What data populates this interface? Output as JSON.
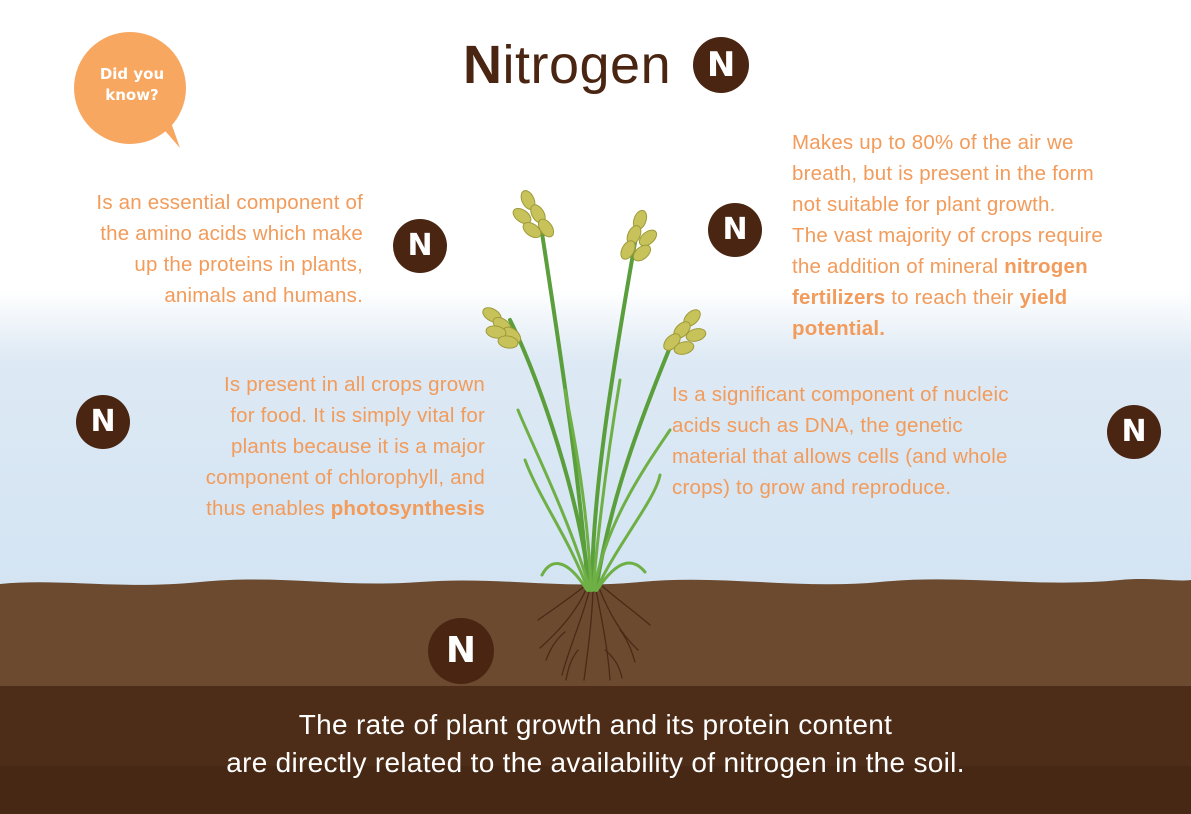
{
  "title": {
    "first_letter": "N",
    "rest": "itrogen"
  },
  "badge_letter": "N",
  "callout": {
    "line1": "Did you",
    "line2": "know?"
  },
  "facts": {
    "amino": {
      "lines": [
        "Is an essential component of",
        "the amino acids which make",
        "up the proteins in plants,",
        "animals and humans."
      ]
    },
    "air": {
      "lines": [
        "Makes up to 80% of the air we",
        "breath, but is present in the form",
        "not suitable for plant growth.",
        "The vast majority of crops require"
      ],
      "line5_prefix": "the addition of mineral ",
      "line5_bold": "nitrogen",
      "line6_bold": "fertilizers",
      "line6_mid": " to reach their ",
      "line6_bold2": "yield",
      "line7_bold": "potential."
    },
    "crops": {
      "lines": [
        "Is present in all crops grown",
        "for food. It is simply vital for",
        "plants because it is a major",
        "component of chlorophyll, and"
      ],
      "line5_prefix": "thus enables ",
      "line5_bold": "photosynthesis"
    },
    "nucleic": {
      "lines": [
        "Is a significant component of nucleic",
        "acids such as DNA, the genetic",
        "material that allows cells (and whole",
        "crops) to grow and reproduce."
      ]
    }
  },
  "footer": {
    "line1": "The rate of plant growth and its protein content",
    "line2": "are directly related to the availability of nitrogen in the soil."
  },
  "colors": {
    "accent_orange": "#f29b5a",
    "bubble_orange": "#f7a760",
    "badge_brown": "#4a2512",
    "soil_light": "#6b4a30",
    "soil_dark": "#4d2d17",
    "sky_blue": "#d3e4f3",
    "plant_green": "#5b9e3c"
  },
  "icons": [
    "speech-bubble-icon",
    "nitrogen-badge-icon",
    "wheat-plant-illustration"
  ]
}
